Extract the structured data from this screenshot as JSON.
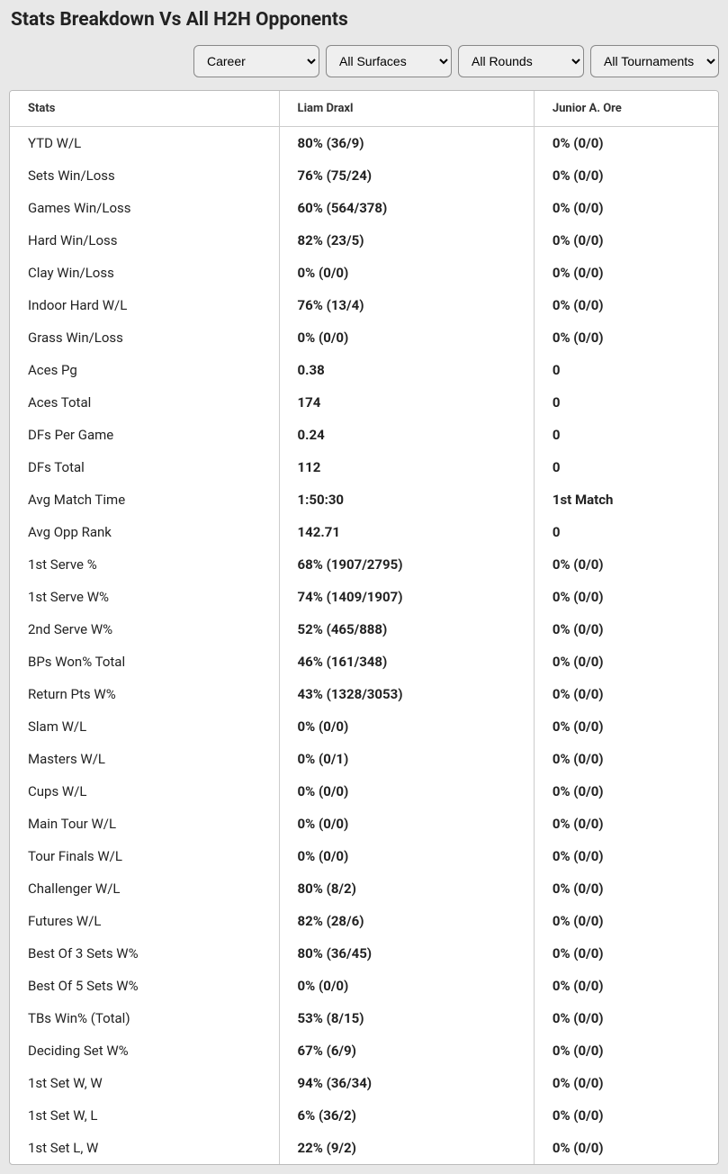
{
  "title": "Stats Breakdown Vs All H2H Opponents",
  "filters": {
    "period": {
      "selected": "Career",
      "options": [
        "Career"
      ]
    },
    "surface": {
      "selected": "All Surfaces",
      "options": [
        "All Surfaces"
      ]
    },
    "round": {
      "selected": "All Rounds",
      "options": [
        "All Rounds"
      ]
    },
    "tournament": {
      "selected": "All Tournaments",
      "options": [
        "All Tournaments"
      ]
    }
  },
  "table": {
    "headers": {
      "stats": "Stats",
      "player1": "Liam Draxl",
      "player2": "Junior A. Ore"
    },
    "rows": [
      {
        "stat": "YTD W/L",
        "p1": "80% (36/9)",
        "p2": "0% (0/0)"
      },
      {
        "stat": "Sets Win/Loss",
        "p1": "76% (75/24)",
        "p2": "0% (0/0)"
      },
      {
        "stat": "Games Win/Loss",
        "p1": "60% (564/378)",
        "p2": "0% (0/0)"
      },
      {
        "stat": "Hard Win/Loss",
        "p1": "82% (23/5)",
        "p2": "0% (0/0)"
      },
      {
        "stat": "Clay Win/Loss",
        "p1": "0% (0/0)",
        "p2": "0% (0/0)"
      },
      {
        "stat": "Indoor Hard W/L",
        "p1": "76% (13/4)",
        "p2": "0% (0/0)"
      },
      {
        "stat": "Grass Win/Loss",
        "p1": "0% (0/0)",
        "p2": "0% (0/0)"
      },
      {
        "stat": "Aces Pg",
        "p1": "0.38",
        "p2": "0"
      },
      {
        "stat": "Aces Total",
        "p1": "174",
        "p2": "0"
      },
      {
        "stat": "DFs Per Game",
        "p1": "0.24",
        "p2": "0"
      },
      {
        "stat": "DFs Total",
        "p1": "112",
        "p2": "0"
      },
      {
        "stat": "Avg Match Time",
        "p1": "1:50:30",
        "p2": "1st Match"
      },
      {
        "stat": "Avg Opp Rank",
        "p1": "142.71",
        "p2": "0"
      },
      {
        "stat": "1st Serve %",
        "p1": "68% (1907/2795)",
        "p2": "0% (0/0)"
      },
      {
        "stat": "1st Serve W%",
        "p1": "74% (1409/1907)",
        "p2": "0% (0/0)"
      },
      {
        "stat": "2nd Serve W%",
        "p1": "52% (465/888)",
        "p2": "0% (0/0)"
      },
      {
        "stat": "BPs Won% Total",
        "p1": "46% (161/348)",
        "p2": "0% (0/0)"
      },
      {
        "stat": "Return Pts W%",
        "p1": "43% (1328/3053)",
        "p2": "0% (0/0)"
      },
      {
        "stat": "Slam W/L",
        "p1": "0% (0/0)",
        "p2": "0% (0/0)"
      },
      {
        "stat": "Masters W/L",
        "p1": "0% (0/1)",
        "p2": "0% (0/0)"
      },
      {
        "stat": "Cups W/L",
        "p1": "0% (0/0)",
        "p2": "0% (0/0)"
      },
      {
        "stat": "Main Tour W/L",
        "p1": "0% (0/0)",
        "p2": "0% (0/0)"
      },
      {
        "stat": "Tour Finals W/L",
        "p1": "0% (0/0)",
        "p2": "0% (0/0)"
      },
      {
        "stat": "Challenger W/L",
        "p1": "80% (8/2)",
        "p2": "0% (0/0)"
      },
      {
        "stat": "Futures W/L",
        "p1": "82% (28/6)",
        "p2": "0% (0/0)"
      },
      {
        "stat": "Best Of 3 Sets W%",
        "p1": "80% (36/45)",
        "p2": "0% (0/0)"
      },
      {
        "stat": "Best Of 5 Sets W%",
        "p1": "0% (0/0)",
        "p2": "0% (0/0)"
      },
      {
        "stat": "TBs Win% (Total)",
        "p1": "53% (8/15)",
        "p2": "0% (0/0)"
      },
      {
        "stat": "Deciding Set W%",
        "p1": "67% (6/9)",
        "p2": "0% (0/0)"
      },
      {
        "stat": "1st Set W, W",
        "p1": "94% (36/34)",
        "p2": "0% (0/0)"
      },
      {
        "stat": "1st Set W, L",
        "p1": "6% (36/2)",
        "p2": "0% (0/0)"
      },
      {
        "stat": "1st Set L, W",
        "p1": "22% (9/2)",
        "p2": "0% (0/0)"
      }
    ]
  }
}
